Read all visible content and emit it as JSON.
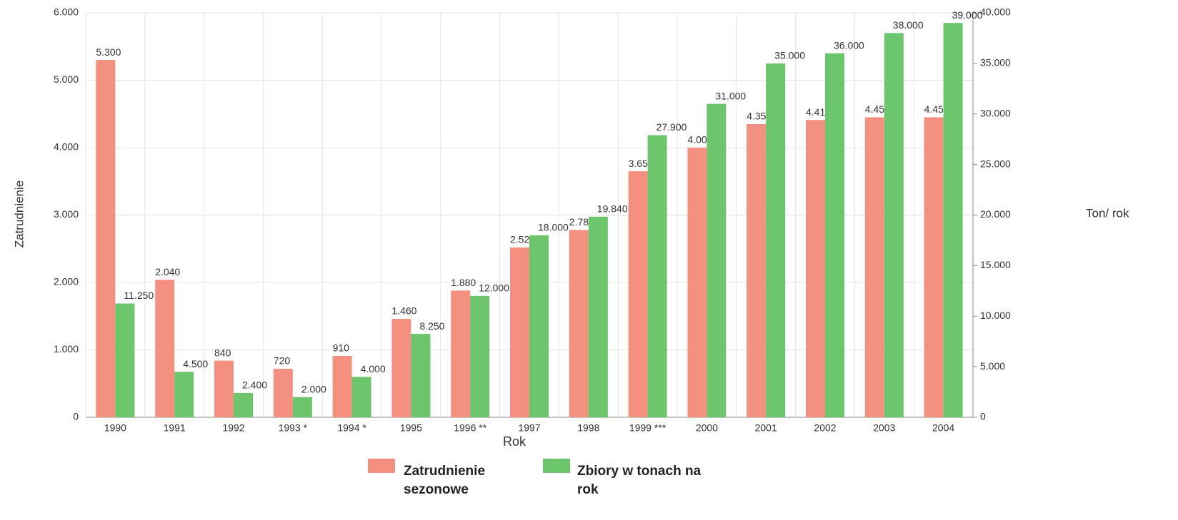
{
  "chart_data": {
    "type": "bar",
    "categories": [
      "1990",
      "1991",
      "1992",
      "1993 *",
      "1994 *",
      "1995",
      "1996 **",
      "1997",
      "1998",
      "1999 ***",
      "2000",
      "2001",
      "2002",
      "2003",
      "2004"
    ],
    "series": [
      {
        "name": "Zatrudnienie sezonowe",
        "color": "#f4907f",
        "values": [
          5300,
          2040,
          840,
          720,
          910,
          1460,
          1880,
          2520,
          2780,
          3650,
          4000,
          4350,
          4410,
          4450,
          4450
        ],
        "value_labels": [
          "5.300",
          "2.040",
          "840",
          "720",
          "910",
          "1.460",
          "1.880",
          "2.520",
          "2.780",
          "3.650",
          "4.000",
          "4.350",
          "4.410",
          "4.450",
          "4.450"
        ]
      },
      {
        "name": "Zbiory w tonach na rok",
        "color": "#6cc46c",
        "axis": "y2",
        "values": [
          11250,
          4500,
          2400,
          2000,
          4000,
          8250,
          12000,
          18000,
          19840,
          27900,
          31000,
          35000,
          36000,
          38000,
          39000
        ],
        "value_labels": [
          "11.250",
          "4.500",
          "2.400",
          "2.000",
          "4.000",
          "8.250",
          "12.000",
          "18.000",
          "19.840",
          "27.900",
          "31.000",
          "35.000",
          "36.000",
          "38.000",
          "39.000"
        ]
      }
    ],
    "x_label": "Rok",
    "y_label": "Zatrudnienie",
    "y2_label": "Ton/ rok",
    "ylim": [
      0,
      6000
    ],
    "yticks": [
      0,
      {
        "value": 1000,
        "label": "1.000"
      },
      {
        "value": 2000,
        "label": "2.000"
      },
      {
        "value": 3000,
        "label": "3.000"
      },
      {
        "value": 4000,
        "label": "4.000"
      },
      {
        "value": 5000,
        "label": "5.000"
      },
      {
        "value": 6000,
        "label": "6.000"
      }
    ],
    "y2lim": [
      0,
      40000
    ],
    "y2ticks": [
      0,
      {
        "value": 5000,
        "label": "5.000"
      },
      {
        "value": 10000,
        "label": "10.000"
      },
      {
        "value": 15000,
        "label": "15.000"
      },
      {
        "value": 20000,
        "label": "20.000"
      },
      {
        "value": 25000,
        "label": "25.000"
      },
      {
        "value": 30000,
        "label": "30.000"
      },
      {
        "value": 35000,
        "label": "35.000"
      },
      {
        "value": 40000,
        "label": "40.000"
      }
    ],
    "grid": true
  }
}
